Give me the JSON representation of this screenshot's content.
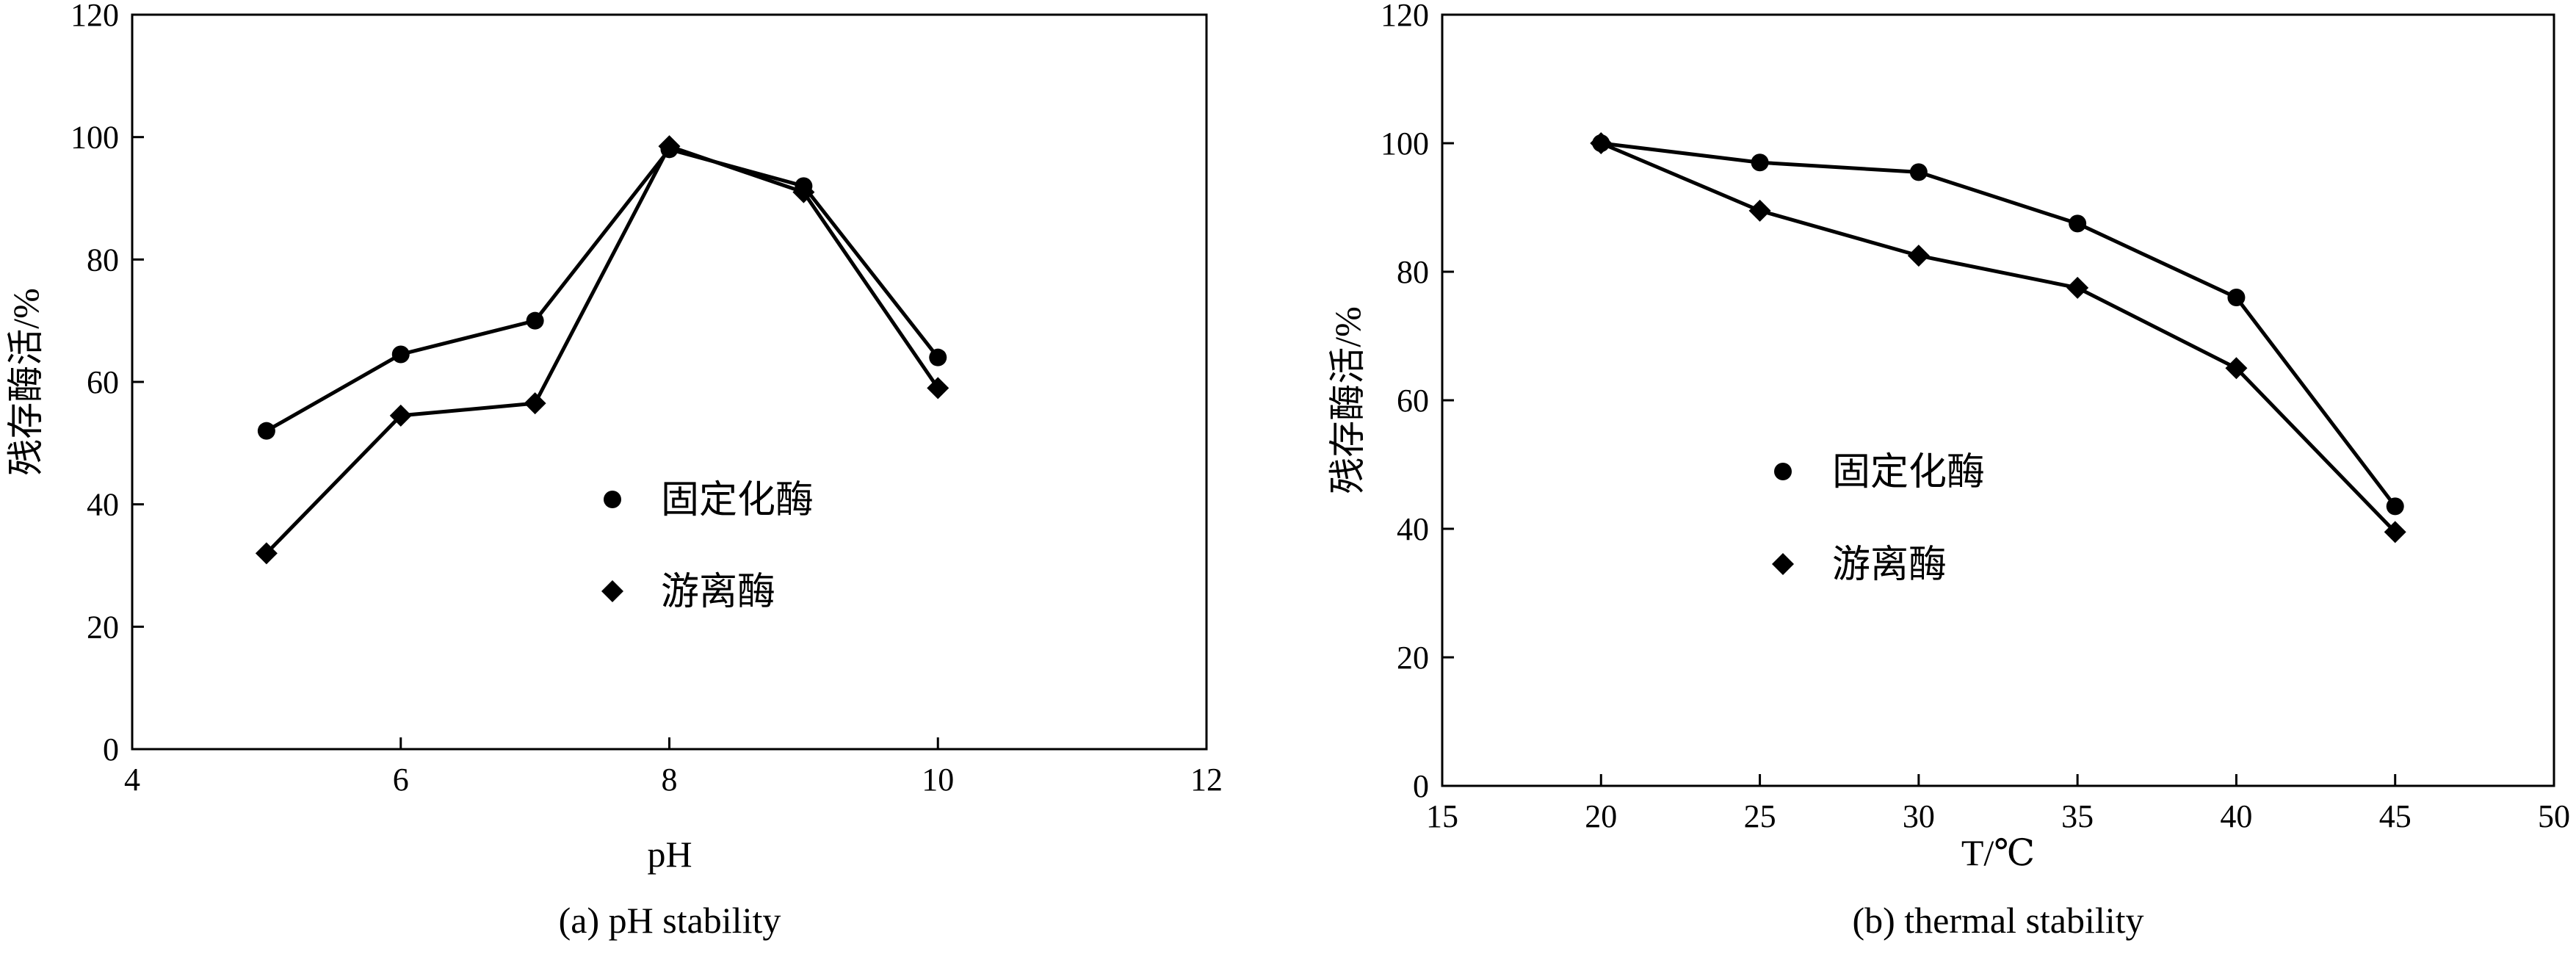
{
  "chart_data": [
    {
      "type": "line",
      "xlabel": "pH",
      "ylabel": "残存酶活/%",
      "caption": "(a)   pH stability",
      "xlim": [
        4,
        12
      ],
      "ylim": [
        0,
        120
      ],
      "xticks": [
        "4",
        "6",
        "8",
        "10",
        "12"
      ],
      "yticks": [
        "0",
        "20",
        "40",
        "60",
        "80",
        "100",
        "120"
      ],
      "grid": false,
      "legend_position": "center-right",
      "series": [
        {
          "name": "固定化酶",
          "marker": "circle",
          "x": [
            5,
            6,
            7,
            8,
            9,
            10
          ],
          "y": [
            52,
            64.5,
            70,
            98,
            92,
            64
          ]
        },
        {
          "name": "游离酶",
          "marker": "diamond",
          "x": [
            5,
            6,
            7,
            8,
            9,
            10
          ],
          "y": [
            32,
            54.5,
            56.5,
            98.5,
            91,
            59
          ]
        }
      ]
    },
    {
      "type": "line",
      "xlabel": "T/℃",
      "ylabel": "残存酶活/%",
      "caption": "(b) thermal stability",
      "xlim": [
        15,
        50
      ],
      "ylim": [
        0,
        120
      ],
      "xticks": [
        "15",
        "20",
        "25",
        "30",
        "35",
        "40",
        "45",
        "50"
      ],
      "yticks": [
        "0",
        "20",
        "40",
        "60",
        "80",
        "100",
        "120"
      ],
      "grid": false,
      "legend_position": "center-left",
      "series": [
        {
          "name": "固定化酶",
          "marker": "circle",
          "x": [
            20,
            25,
            30,
            35,
            40,
            45
          ],
          "y": [
            100,
            97,
            95.5,
            87.5,
            76,
            43.5
          ]
        },
        {
          "name": "游离酶",
          "marker": "diamond",
          "x": [
            20,
            25,
            30,
            35,
            40,
            45
          ],
          "y": [
            100,
            89.5,
            82.5,
            77.5,
            65,
            39.5
          ]
        }
      ]
    }
  ]
}
